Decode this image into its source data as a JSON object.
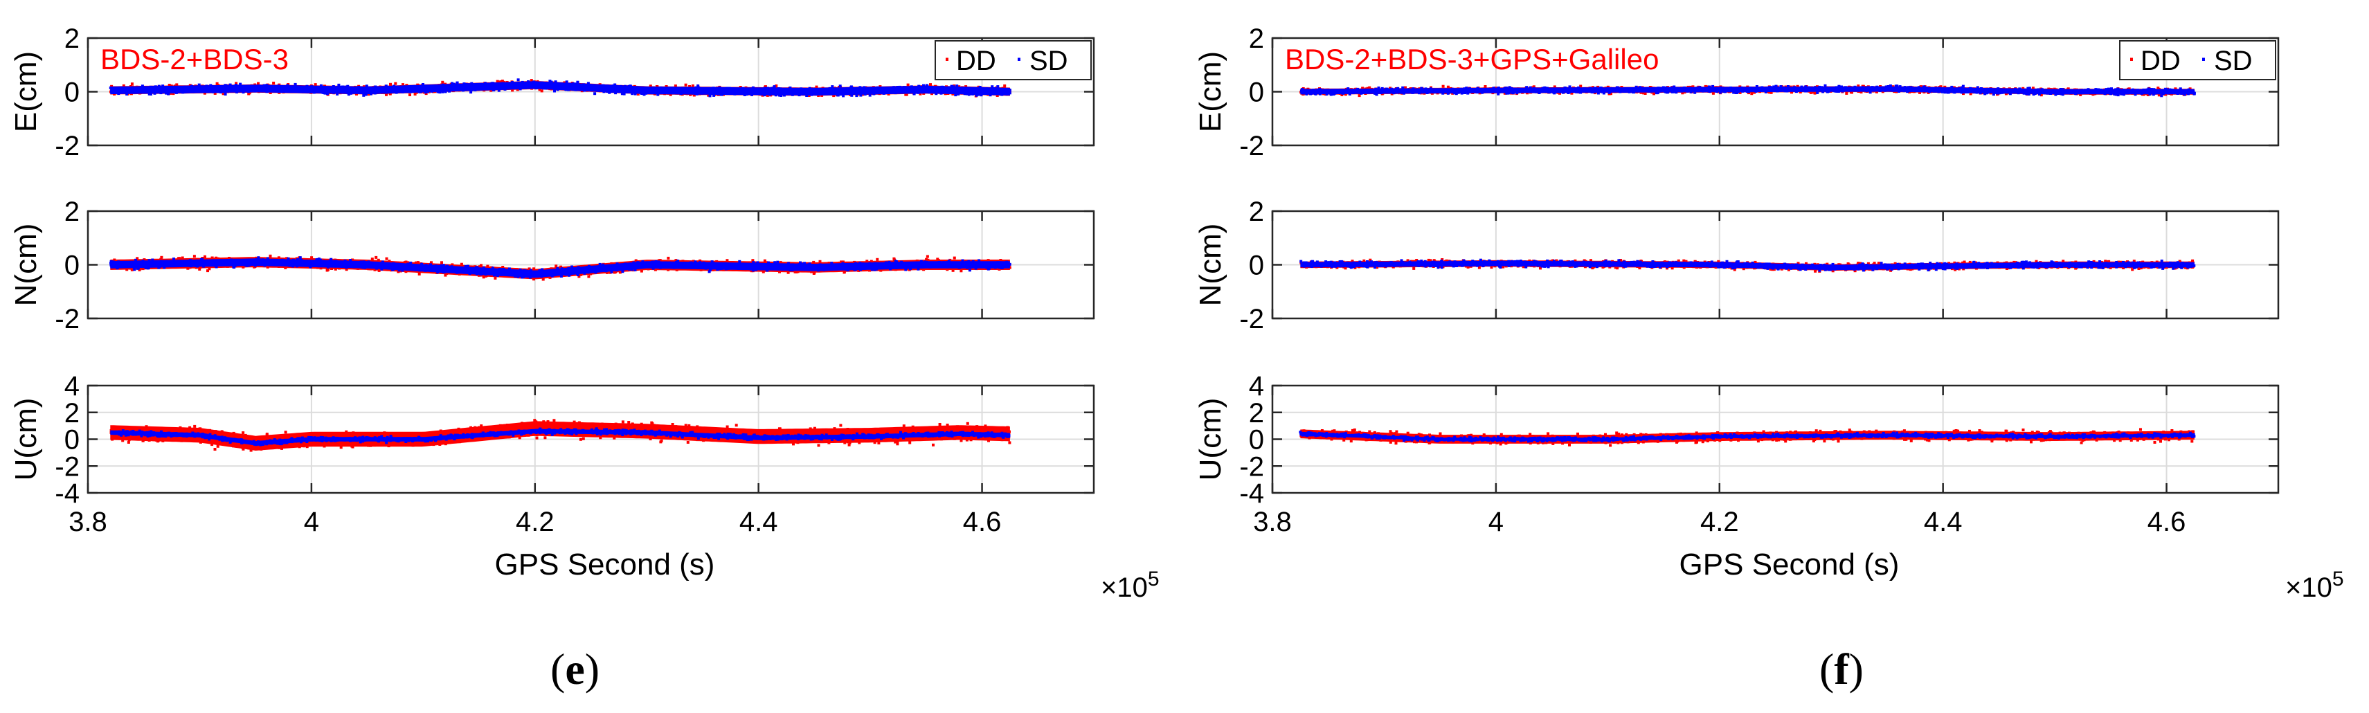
{
  "figure": {
    "captions": [
      {
        "open": "(",
        "letter": "e",
        "close": ")"
      },
      {
        "open": "(",
        "letter": "f",
        "close": ")"
      }
    ]
  },
  "style": {
    "dd_color": "#ff0000",
    "sd_color": "#0000ff",
    "title_color": "#ff0000",
    "grid_color": "#dcdcdc",
    "axis_color": "#262626"
  },
  "chart_data": [
    {
      "type": "scatter",
      "title": "BDS-2+BDS-3",
      "xlabel": "GPS Second (s)",
      "x_exponent_label": "×10",
      "x_exponent_power": "5",
      "xlim": [
        3.8,
        4.7
      ],
      "xticks": [
        3.8,
        4.0,
        4.2,
        4.4,
        4.6
      ],
      "xtick_labels": [
        "3.8",
        "4",
        "4.2",
        "4.4",
        "4.6"
      ],
      "x_data_range": [
        3.82,
        4.625
      ],
      "legend": {
        "placement": "top-right",
        "entries": [
          "DD",
          "SD"
        ],
        "marker": "·"
      },
      "panels": [
        {
          "ylabel": "E(cm)",
          "ylim": [
            -2,
            2
          ],
          "yticks": [
            -2,
            0,
            2
          ],
          "ytick_labels": [
            "-2",
            "0",
            "2"
          ],
          "series": [
            {
              "name": "DD",
              "center": [
                [
                  3.82,
                  0.05
                ],
                [
                  3.95,
                  0.12
                ],
                [
                  4.05,
                  0.05
                ],
                [
                  4.2,
                  0.25
                ],
                [
                  4.3,
                  0.05
                ],
                [
                  4.45,
                  0.0
                ],
                [
                  4.55,
                  0.08
                ],
                [
                  4.625,
                  0.0
                ]
              ],
              "spread": 0.28
            },
            {
              "name": "SD",
              "center": [
                [
                  3.82,
                  0.05
                ],
                [
                  3.95,
                  0.12
                ],
                [
                  4.05,
                  0.05
                ],
                [
                  4.2,
                  0.25
                ],
                [
                  4.3,
                  0.05
                ],
                [
                  4.45,
                  0.0
                ],
                [
                  4.55,
                  0.08
                ],
                [
                  4.625,
                  0.0
                ]
              ],
              "spread": 0.26
            }
          ]
        },
        {
          "ylabel": "N(cm)",
          "ylim": [
            -2,
            2
          ],
          "yticks": [
            -2,
            0,
            2
          ],
          "ytick_labels": [
            "-2",
            "0",
            "2"
          ],
          "series": [
            {
              "name": "DD",
              "center": [
                [
                  3.82,
                  0.0
                ],
                [
                  3.95,
                  0.1
                ],
                [
                  4.05,
                  0.0
                ],
                [
                  4.2,
                  -0.35
                ],
                [
                  4.3,
                  0.0
                ],
                [
                  4.45,
                  -0.1
                ],
                [
                  4.55,
                  0.0
                ],
                [
                  4.625,
                  0.0
                ]
              ],
              "spread": 0.35
            },
            {
              "name": "SD",
              "center": [
                [
                  3.82,
                  0.0
                ],
                [
                  3.95,
                  0.1
                ],
                [
                  4.05,
                  0.0
                ],
                [
                  4.2,
                  -0.35
                ],
                [
                  4.3,
                  0.0
                ],
                [
                  4.45,
                  -0.1
                ],
                [
                  4.55,
                  0.0
                ],
                [
                  4.625,
                  0.0
                ]
              ],
              "spread": 0.25
            }
          ]
        },
        {
          "ylabel": "U(cm)",
          "ylim": [
            -4,
            4
          ],
          "yticks": [
            -4,
            -2,
            0,
            2,
            4
          ],
          "ytick_labels": [
            "-4",
            "-2",
            "0",
            "2",
            "4"
          ],
          "series": [
            {
              "name": "DD",
              "center": [
                [
                  3.82,
                  0.5
                ],
                [
                  3.9,
                  0.3
                ],
                [
                  3.95,
                  -0.3
                ],
                [
                  4.0,
                  0.0
                ],
                [
                  4.1,
                  0.0
                ],
                [
                  4.2,
                  0.8
                ],
                [
                  4.3,
                  0.6
                ],
                [
                  4.4,
                  0.2
                ],
                [
                  4.5,
                  0.3
                ],
                [
                  4.58,
                  0.5
                ],
                [
                  4.625,
                  0.4
                ]
              ],
              "spread": 1.0
            },
            {
              "name": "SD",
              "center": [
                [
                  3.82,
                  0.5
                ],
                [
                  3.9,
                  0.3
                ],
                [
                  3.95,
                  -0.3
                ],
                [
                  4.0,
                  0.0
                ],
                [
                  4.1,
                  0.0
                ],
                [
                  4.2,
                  0.6
                ],
                [
                  4.3,
                  0.5
                ],
                [
                  4.4,
                  0.1
                ],
                [
                  4.5,
                  0.2
                ],
                [
                  4.58,
                  0.4
                ],
                [
                  4.625,
                  0.3
                ]
              ],
              "spread": 0.3
            }
          ]
        }
      ]
    },
    {
      "type": "scatter",
      "title": "BDS-2+BDS-3+GPS+Galileo",
      "xlabel": "GPS Second (s)",
      "x_exponent_label": "×10",
      "x_exponent_power": "5",
      "xlim": [
        3.8,
        4.7
      ],
      "xticks": [
        3.8,
        4.0,
        4.2,
        4.4,
        4.6
      ],
      "xtick_labels": [
        "3.8",
        "4",
        "4.2",
        "4.4",
        "4.6"
      ],
      "x_data_range": [
        3.825,
        4.625
      ],
      "legend": {
        "placement": "top-right",
        "entries": [
          "DD",
          "SD"
        ],
        "marker": "·"
      },
      "panels": [
        {
          "ylabel": "E(cm)",
          "ylim": [
            -2,
            2
          ],
          "yticks": [
            -2,
            0,
            2
          ],
          "ytick_labels": [
            "-2",
            "0",
            "2"
          ],
          "series": [
            {
              "name": "DD",
              "center": [
                [
                  3.825,
                  0.0
                ],
                [
                  4.0,
                  0.05
                ],
                [
                  4.2,
                  0.08
                ],
                [
                  4.35,
                  0.1
                ],
                [
                  4.5,
                  0.0
                ],
                [
                  4.625,
                  0.0
                ]
              ],
              "spread": 0.2
            },
            {
              "name": "SD",
              "center": [
                [
                  3.825,
                  0.0
                ],
                [
                  4.0,
                  0.05
                ],
                [
                  4.2,
                  0.08
                ],
                [
                  4.35,
                  0.1
                ],
                [
                  4.5,
                  0.0
                ],
                [
                  4.625,
                  0.0
                ]
              ],
              "spread": 0.18
            }
          ]
        },
        {
          "ylabel": "N(cm)",
          "ylim": [
            -2,
            2
          ],
          "yticks": [
            -2,
            0,
            2
          ],
          "ytick_labels": [
            "-2",
            "0",
            "2"
          ],
          "series": [
            {
              "name": "DD",
              "center": [
                [
                  3.825,
                  0.0
                ],
                [
                  4.0,
                  0.05
                ],
                [
                  4.2,
                  0.0
                ],
                [
                  4.3,
                  -0.1
                ],
                [
                  4.5,
                  0.0
                ],
                [
                  4.625,
                  0.0
                ]
              ],
              "spread": 0.22
            },
            {
              "name": "SD",
              "center": [
                [
                  3.825,
                  0.0
                ],
                [
                  4.0,
                  0.05
                ],
                [
                  4.2,
                  0.0
                ],
                [
                  4.3,
                  -0.1
                ],
                [
                  4.5,
                  0.0
                ],
                [
                  4.625,
                  0.0
                ]
              ],
              "spread": 0.18
            }
          ]
        },
        {
          "ylabel": "U(cm)",
          "ylim": [
            -4,
            4
          ],
          "yticks": [
            -4,
            -2,
            0,
            2,
            4
          ],
          "ytick_labels": [
            "-4",
            "-2",
            "0",
            "2",
            "4"
          ],
          "series": [
            {
              "name": "DD",
              "center": [
                [
                  3.825,
                  0.4
                ],
                [
                  3.95,
                  0.0
                ],
                [
                  4.1,
                  0.0
                ],
                [
                  4.2,
                  0.2
                ],
                [
                  4.35,
                  0.3
                ],
                [
                  4.5,
                  0.2
                ],
                [
                  4.625,
                  0.3
                ]
              ],
              "spread": 0.6
            },
            {
              "name": "SD",
              "center": [
                [
                  3.825,
                  0.4
                ],
                [
                  3.95,
                  0.0
                ],
                [
                  4.1,
                  0.0
                ],
                [
                  4.2,
                  0.2
                ],
                [
                  4.35,
                  0.3
                ],
                [
                  4.5,
                  0.2
                ],
                [
                  4.625,
                  0.3
                ]
              ],
              "spread": 0.22
            }
          ]
        }
      ]
    }
  ]
}
